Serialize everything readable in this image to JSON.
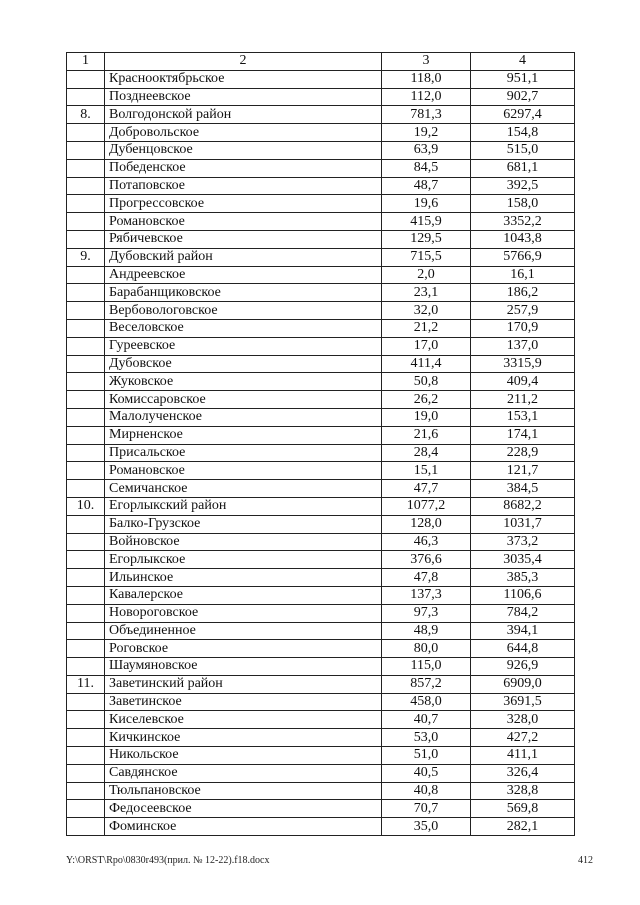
{
  "table": {
    "header": [
      "1",
      "2",
      "3",
      "4"
    ],
    "rows": [
      [
        "",
        "Краснооктябрьское",
        "118,0",
        "951,1"
      ],
      [
        "",
        "Позднеевское",
        "112,0",
        "902,7"
      ],
      [
        "8.",
        "Волгодонской район",
        "781,3",
        "6297,4"
      ],
      [
        "",
        "Добровольское",
        "19,2",
        "154,8"
      ],
      [
        "",
        "Дубенцовское",
        "63,9",
        "515,0"
      ],
      [
        "",
        "Победенское",
        "84,5",
        "681,1"
      ],
      [
        "",
        "Потаповское",
        "48,7",
        "392,5"
      ],
      [
        "",
        "Прогрессовское",
        "19,6",
        "158,0"
      ],
      [
        "",
        "Романовское",
        "415,9",
        "3352,2"
      ],
      [
        "",
        "Рябичевское",
        "129,5",
        "1043,8"
      ],
      [
        "9.",
        "Дубовский район",
        "715,5",
        "5766,9"
      ],
      [
        "",
        "Андреевское",
        "2,0",
        "16,1"
      ],
      [
        "",
        "Барабанщиковское",
        "23,1",
        "186,2"
      ],
      [
        "",
        "Вербовологовское",
        "32,0",
        "257,9"
      ],
      [
        "",
        "Веселовское",
        "21,2",
        "170,9"
      ],
      [
        "",
        "Гуреевское",
        "17,0",
        "137,0"
      ],
      [
        "",
        "Дубовское",
        "411,4",
        "3315,9"
      ],
      [
        "",
        "Жуковское",
        "50,8",
        "409,4"
      ],
      [
        "",
        "Комиссаровское",
        "26,2",
        "211,2"
      ],
      [
        "",
        "Малолученское",
        "19,0",
        "153,1"
      ],
      [
        "",
        "Мирненское",
        "21,6",
        "174,1"
      ],
      [
        "",
        "Присальское",
        "28,4",
        "228,9"
      ],
      [
        "",
        "Романовское",
        "15,1",
        "121,7"
      ],
      [
        "",
        "Семичанское",
        "47,7",
        "384,5"
      ],
      [
        "10.",
        "Егорлыкский район",
        "1077,2",
        "8682,2"
      ],
      [
        "",
        "Балко-Грузское",
        "128,0",
        "1031,7"
      ],
      [
        "",
        "Войновское",
        "46,3",
        "373,2"
      ],
      [
        "",
        "Егорлыкское",
        "376,6",
        "3035,4"
      ],
      [
        "",
        "Ильинское",
        "47,8",
        "385,3"
      ],
      [
        "",
        "Кавалерское",
        "137,3",
        "1106,6"
      ],
      [
        "",
        "Новороговское",
        "97,3",
        "784,2"
      ],
      [
        "",
        "Объединенное",
        "48,9",
        "394,1"
      ],
      [
        "",
        "Роговское",
        "80,0",
        "644,8"
      ],
      [
        "",
        "Шаумяновское",
        "115,0",
        "926,9"
      ],
      [
        "11.",
        "Заветинский район",
        "857,2",
        "6909,0"
      ],
      [
        "",
        "Заветинское",
        "458,0",
        "3691,5"
      ],
      [
        "",
        "Киселевское",
        "40,7",
        "328,0"
      ],
      [
        "",
        "Кичкинское",
        "53,0",
        "427,2"
      ],
      [
        "",
        "Никольское",
        "51,0",
        "411,1"
      ],
      [
        "",
        "Савдянское",
        "40,5",
        "326,4"
      ],
      [
        "",
        "Тюльпановское",
        "40,8",
        "328,8"
      ],
      [
        "",
        "Федосеевское",
        "70,7",
        "569,8"
      ],
      [
        "",
        "Фоминское",
        "35,0",
        "282,1"
      ]
    ]
  },
  "footer": {
    "path": "Y:\\ORST\\Rpo\\0830r493(прил. № 12-22).f18.docx",
    "page_number": "412"
  }
}
